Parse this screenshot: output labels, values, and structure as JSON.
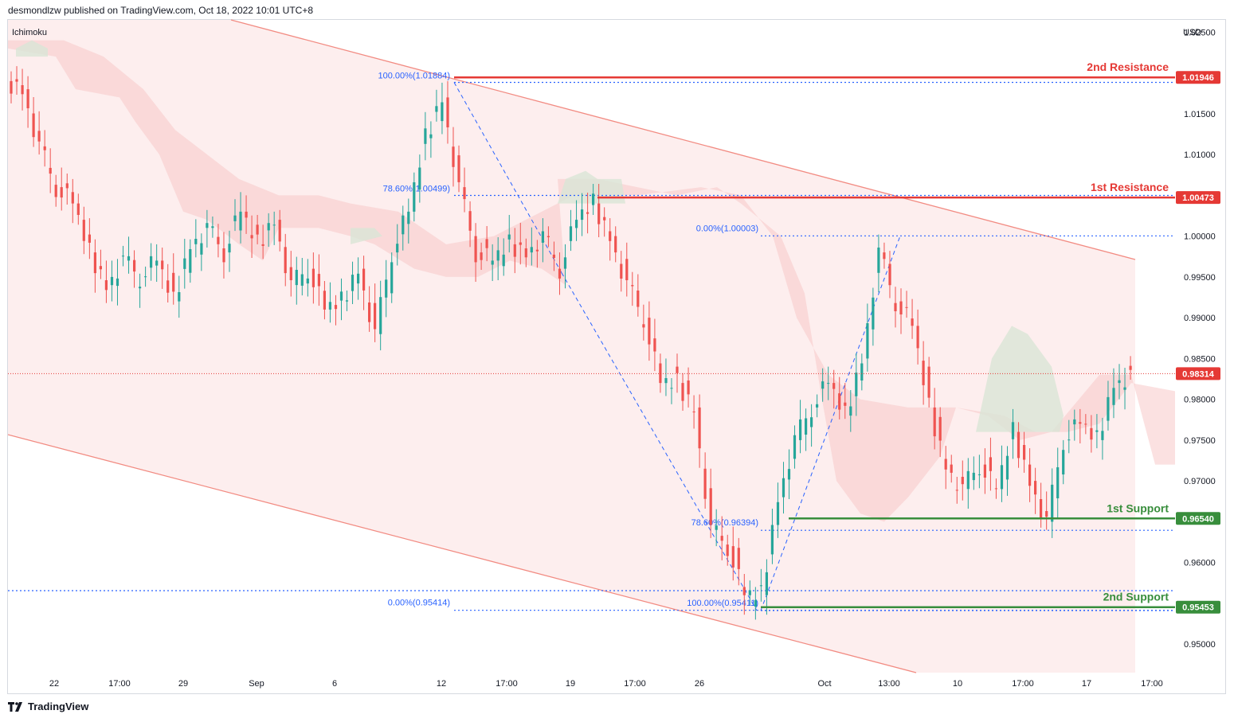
{
  "header": {
    "publish_line": "desmondlzw published on TradingView.com, Oct 18, 2022 10:01 UTC+8"
  },
  "footer": {
    "brand": "TradingView"
  },
  "chart_data": {
    "type": "candlestick",
    "indicator_label": "Ichimoku",
    "currency_label": "USD",
    "y_ticks": [
      "1.02500",
      "1.01500",
      "1.01000",
      "1.00000",
      "0.99500",
      "0.99000",
      "0.98500",
      "0.98000",
      "0.97500",
      "0.97000",
      "0.96000",
      "0.95000"
    ],
    "x_ticks": [
      "22",
      "17:00",
      "29",
      "Sep",
      "6",
      "12",
      "17:00",
      "19",
      "17:00",
      "26",
      "Oct",
      "13:00",
      "10",
      "17:00",
      "17",
      "17:00"
    ],
    "levels": [
      {
        "label": "2nd Resistance",
        "price": "1.01946",
        "color": "#e53935"
      },
      {
        "label": "1st Resistance",
        "price": "1.00473",
        "color": "#e53935"
      },
      {
        "label": "1st Support",
        "price": "0.96540",
        "color": "#388e3c"
      },
      {
        "label": "2nd Support",
        "price": "0.95453",
        "color": "#388e3c"
      }
    ],
    "current_price": {
      "price": "0.98314",
      "color": "#e53935"
    },
    "fib_labels": [
      "100.00%(1.01884)",
      "78.60%(1.00499)",
      "0.00%(0.95414)",
      "0.00%(1.00003)",
      "78.60%(0.96394)",
      "100.00%(0.95411)"
    ],
    "series": [
      {
        "name": "price",
        "values": [
          1.018,
          1.011,
          1.006,
          1.004,
          0.998,
          0.994,
          0.997,
          0.995,
          0.997,
          0.992,
          0.999,
          1.001,
          0.998,
          1.003,
          0.999,
          1.002,
          0.994,
          0.996,
          0.991,
          0.992,
          0.996,
          0.988,
          0.998,
          1.003,
          1.012,
          1.017,
          1.006,
          0.998,
          0.997,
          0.999,
          0.998,
          1.0,
          0.996,
          1.002,
          1.004,
          1.0,
          0.994,
          0.99,
          0.982,
          0.982,
          0.979,
          0.964,
          0.962,
          0.956,
          0.956,
          0.968,
          0.975,
          0.979,
          0.982,
          0.978,
          0.985,
          0.998,
          0.992,
          0.989,
          0.979,
          0.972,
          0.969,
          0.972,
          0.969,
          0.976,
          0.97,
          0.965,
          0.975,
          0.977,
          0.975,
          0.982,
          0.983
        ]
      }
    ],
    "ylim": [
      0.9465,
      1.0265
    ]
  }
}
